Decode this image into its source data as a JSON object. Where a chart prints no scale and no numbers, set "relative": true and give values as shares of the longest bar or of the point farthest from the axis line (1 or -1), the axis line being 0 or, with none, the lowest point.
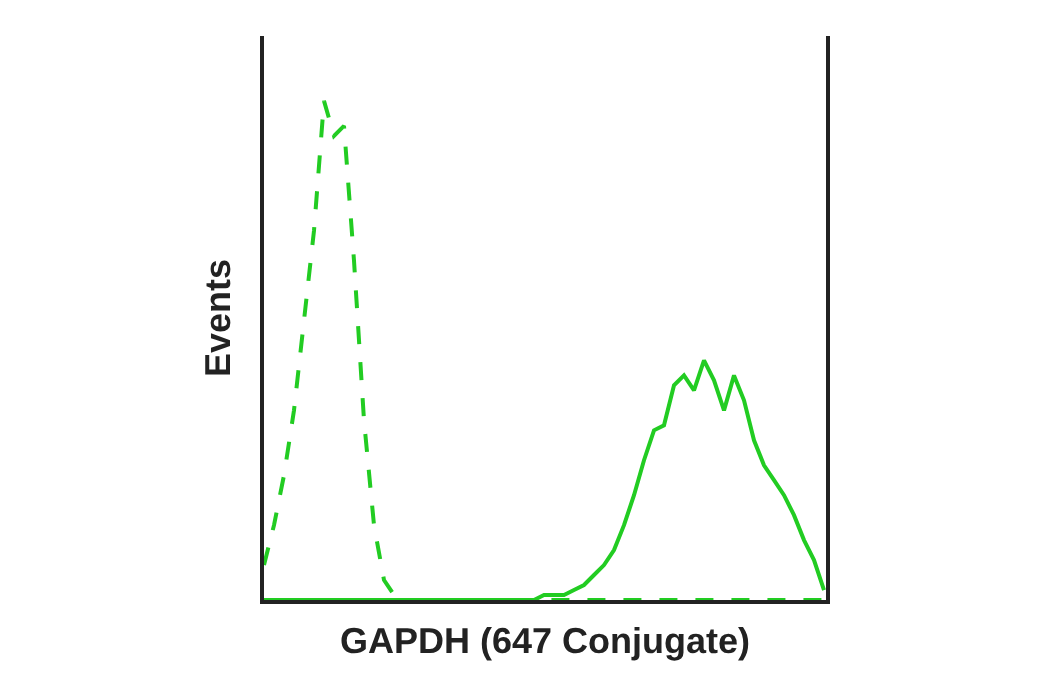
{
  "chart_data": {
    "type": "line",
    "relative": true,
    "xlabel": "GAPDH (647 Conjugate)",
    "ylabel": "Events",
    "categories": [
      null,
      null,
      null,
      null,
      null,
      null,
      null,
      null,
      null,
      null,
      null,
      null,
      null,
      null,
      null,
      null,
      null,
      null,
      null,
      null,
      null,
      null,
      null,
      null,
      null,
      null,
      null,
      null,
      null,
      null,
      null,
      null,
      null,
      null,
      null,
      null,
      null,
      null,
      null,
      null,
      null,
      null,
      null,
      null,
      null,
      null,
      null,
      null,
      null,
      null,
      null,
      null,
      null,
      null,
      null,
      null,
      null
    ],
    "series": [
      {
        "color": "#22cc22",
        "line_style": "dashed",
        "values": [
          0.07,
          0.15,
          0.25,
          0.38,
          0.56,
          0.74,
          1.0,
          0.93,
          0.95,
          0.68,
          0.36,
          0.15,
          0.04,
          0.01,
          0,
          0,
          0,
          0,
          0,
          0,
          0,
          0,
          0,
          0,
          0,
          0,
          0,
          0,
          0,
          0,
          0,
          0,
          0,
          0,
          0,
          0,
          0,
          0,
          0,
          0,
          0,
          0,
          0,
          0,
          0,
          0,
          0,
          0,
          0,
          0,
          0,
          0,
          0,
          0,
          0,
          0,
          0
        ]
      },
      {
        "color": "#22cc22",
        "line_style": "solid",
        "values": [
          0,
          0,
          0,
          0,
          0,
          0,
          0,
          0,
          0,
          0,
          0,
          0,
          0,
          0,
          0,
          0,
          0,
          0,
          0,
          0,
          0,
          0,
          0,
          0,
          0,
          0,
          0,
          0,
          0.01,
          0.01,
          0.01,
          0.02,
          0.03,
          0.05,
          0.07,
          0.1,
          0.15,
          0.21,
          0.28,
          0.34,
          0.35,
          0.43,
          0.45,
          0.42,
          0.48,
          0.44,
          0.38,
          0.45,
          0.4,
          0.32,
          0.27,
          0.24,
          0.21,
          0.17,
          0.12,
          0.08,
          0.02
        ]
      }
    ]
  }
}
